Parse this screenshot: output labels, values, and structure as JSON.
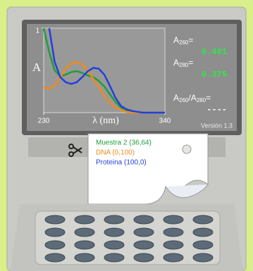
{
  "chart_data": {
    "type": "line",
    "x_label": "λ (nm)",
    "y_label": "A",
    "x": [
      230,
      235,
      240,
      245,
      250,
      255,
      260,
      265,
      270,
      275,
      280,
      285,
      290,
      295,
      300,
      305,
      310,
      315,
      320,
      325,
      330,
      335,
      340
    ],
    "series": [
      {
        "name": "Muestra 2 (36,64)",
        "color": "#1f9e3a",
        "values": [
          1,
          0.72,
          0.5,
          0.43,
          0.45,
          0.48,
          0.491,
          0.47,
          0.44,
          0.42,
          0.375,
          0.31,
          0.22,
          0.13,
          0.06,
          0.03,
          0.01,
          0,
          0,
          0,
          0,
          0,
          0
        ]
      },
      {
        "name": "DNA (0,100)",
        "color": "#f08a1c",
        "values": [
          0.3,
          0.28,
          0.32,
          0.42,
          0.52,
          0.58,
          0.6,
          0.57,
          0.5,
          0.4,
          0.3,
          0.2,
          0.12,
          0.06,
          0.03,
          0.01,
          0,
          0,
          0,
          0,
          0,
          0,
          0
        ]
      },
      {
        "name": "Proteina (100,0)",
        "color": "#2240dd",
        "values": [
          null,
          1,
          0.6,
          0.42,
          0.36,
          0.34,
          0.36,
          0.42,
          0.49,
          0.53,
          0.52,
          0.45,
          0.32,
          0.18,
          0.08,
          0.04,
          0.02,
          0.01,
          0,
          0,
          0,
          0,
          0
        ]
      }
    ],
    "xlim": [
      230,
      340
    ],
    "ylim": [
      0,
      1
    ],
    "xticks": [
      230,
      340
    ],
    "yticks": [
      1
    ]
  },
  "readouts": [
    {
      "label": [
        "A",
        "260",
        "="
      ],
      "value": "0.491"
    },
    {
      "label": [
        "A",
        "280",
        "="
      ],
      "value": "0.375"
    },
    {
      "label": [
        "A",
        "260",
        "/A",
        "280",
        "="
      ],
      "value": "----"
    }
  ],
  "version": "Versión 1.3"
}
